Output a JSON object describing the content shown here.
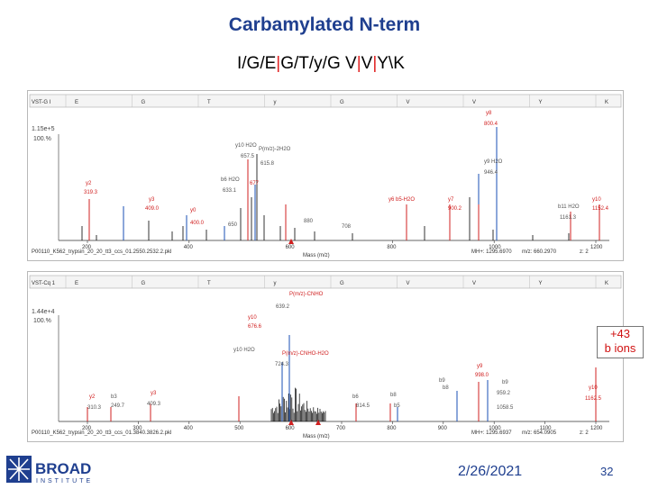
{
  "slide": {
    "title": "Carbamylated N-term",
    "seq_parts": [
      {
        "t": "I/G/E",
        "c": "#000000"
      },
      {
        "t": "|",
        "c": "#e02020"
      },
      {
        "t": "G/T/y/G V",
        "c": "#000000"
      },
      {
        "t": "|",
        "c": "#e02020"
      },
      {
        "t": "V",
        "c": "#000000"
      },
      {
        "t": "|",
        "c": "#e02020"
      },
      {
        "t": "Y\\K",
        "c": "#000000"
      }
    ],
    "callout_line1": "+43",
    "callout_line2": "b ions",
    "date": "2/26/2021",
    "page_number": "32",
    "logo_text_main": "BROAD",
    "logo_text_sub": "INSTITUTE"
  },
  "spectrum_top": {
    "seq_label": "VST-G I",
    "seq_letters": [
      "E",
      "G",
      "T",
      "y",
      "G",
      "V",
      "V",
      "Y",
      "K"
    ],
    "intensity": "1.15e+5",
    "pct": "100.%",
    "file": "P00110_K562_trypsin_20_20_tt3_ccs_01.2550.2532.2.pkl",
    "mh": "MH+: 1295.6970",
    "mz": "m/z: 660.2970",
    "z": "z: 2",
    "x_axis_label": "Mass (m/z)",
    "x_ticks": [
      "200",
      "400",
      "600",
      "800",
      "1000",
      "1200"
    ],
    "annotations": [
      "y8",
      "800.4",
      "y10 H2O",
      "P(m/z)-2H2O",
      "657.5",
      "615.8",
      "y9 H2O",
      "946.4",
      "y2",
      "319.3",
      "b6 H2O",
      "633.1",
      "677",
      "y3",
      "409.0",
      "y0",
      "400.0",
      "650",
      "880",
      "708",
      "y6 b5-H2O",
      "y7",
      "900.2",
      "b11 H2O",
      "1161.3",
      "y10",
      "1152.4"
    ]
  },
  "spectrum_bottom": {
    "seq_label": "VST-Cq 1",
    "seq_letters": [
      "E",
      "G",
      "T",
      "y",
      "G",
      "V",
      "V",
      "Y",
      "K"
    ],
    "intensity": "1.44e+4",
    "pct": "100.%",
    "file": "P00110_K562_trypsin_20_20_tt3_ccs_01.3840.3826.2.pkl",
    "mh": "MH+: 1295.6937",
    "mz": "m/z: 654.0905",
    "z": "z: 2",
    "x_axis_label": "Mass (m/z)",
    "x_ticks": [
      "200",
      "300",
      "400",
      "500",
      "600",
      "700",
      "800",
      "900",
      "1000",
      "1100",
      "1200"
    ],
    "annotations": [
      "P(m/z)-CNHO",
      "639.2",
      "y10",
      "676.6",
      "P(m/z)-CNHO-H2O",
      "y10 H2O",
      "724.3",
      "y9",
      "998.0",
      "b9",
      "959.2",
      "y2",
      "b3",
      "310.3",
      "249.7",
      "y3",
      "409.3",
      "b6",
      "b8",
      "814.5",
      "b8",
      "b9",
      "1058.5",
      "y10",
      "1162.5",
      "b5"
    ]
  }
}
